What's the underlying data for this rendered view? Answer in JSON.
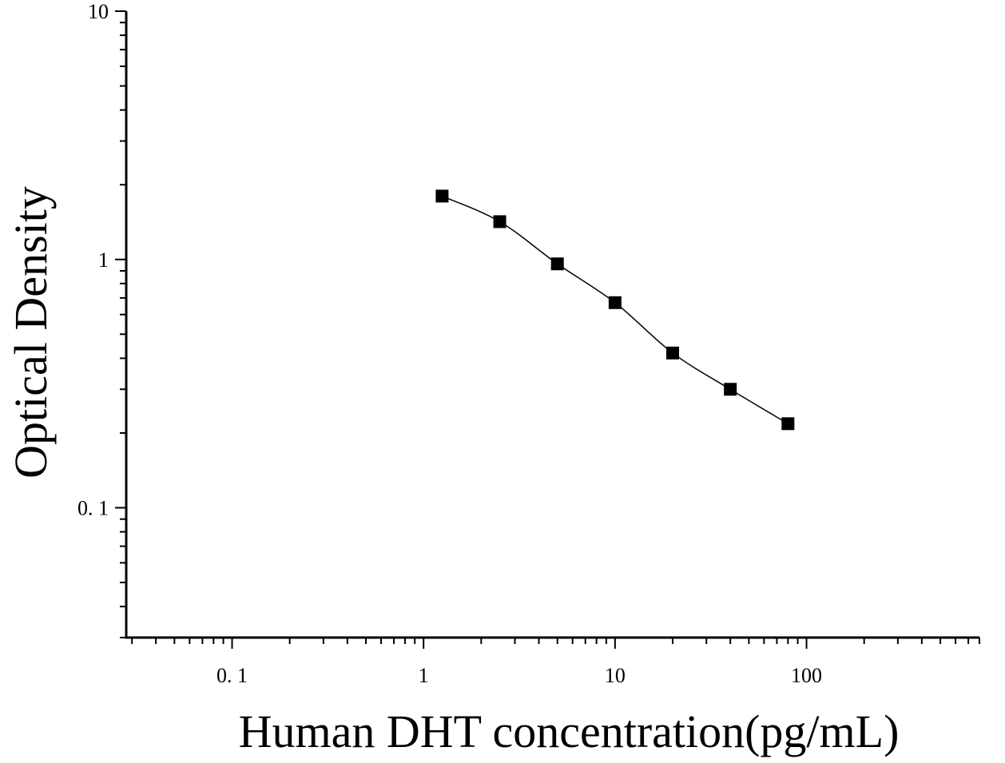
{
  "chart_data": {
    "type": "scatter",
    "title": "",
    "xlabel": "Human DHT concentration(pg/mL)",
    "ylabel": "Optical Density",
    "x_scale": "log",
    "y_scale": "log",
    "xlim": [
      0.028,
      800
    ],
    "ylim": [
      0.03,
      10
    ],
    "x_tick_labels": [
      {
        "value": 0.1,
        "label": "0. 1"
      },
      {
        "value": 1,
        "label": "1"
      },
      {
        "value": 10,
        "label": "10"
      },
      {
        "value": 100,
        "label": "100"
      }
    ],
    "y_tick_labels": [
      {
        "value": 0.1,
        "label": "0. 1"
      },
      {
        "value": 1,
        "label": "1"
      },
      {
        "value": 10,
        "label": "10"
      }
    ],
    "grid": false,
    "legend": "none",
    "marker": "square",
    "series": [
      {
        "x": [
          1.25,
          2.5,
          5,
          10,
          20,
          40,
          80
        ],
        "y": [
          1.8,
          1.42,
          0.96,
          0.67,
          0.42,
          0.3,
          0.218
        ]
      }
    ],
    "fit_curve": "four-parameter logistic"
  }
}
